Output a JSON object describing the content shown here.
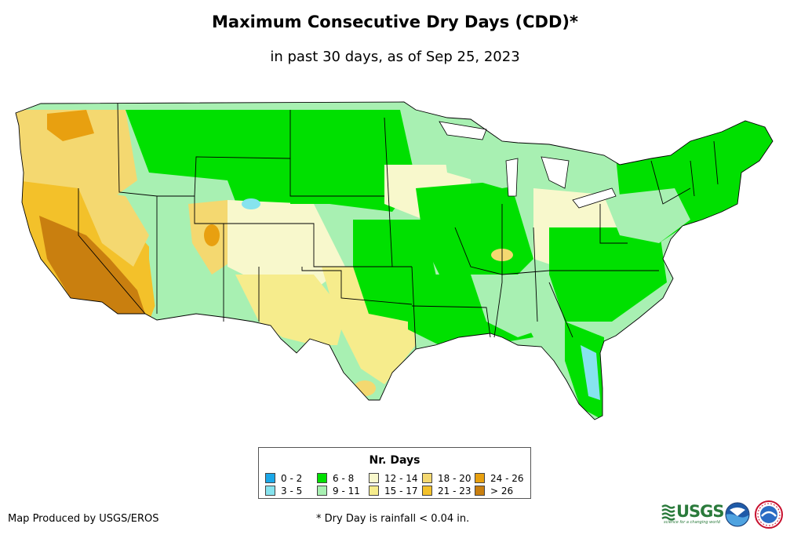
{
  "header": {
    "title": "Maximum Consecutive Dry Days (CDD)*",
    "subtitle": "in past 30 days, as of Sep 25, 2023"
  },
  "legend": {
    "title": "Nr. Days",
    "items": [
      {
        "label": "0 - 2",
        "color": "#1ba7e8"
      },
      {
        "label": "3 - 5",
        "color": "#86e3ee"
      },
      {
        "label": "6 - 8",
        "color": "#00e000"
      },
      {
        "label": "9 - 11",
        "color": "#a8f0b2"
      },
      {
        "label": "12 - 14",
        "color": "#f8f8cc"
      },
      {
        "label": "15 - 17",
        "color": "#f6ec8c"
      },
      {
        "label": "18 - 20",
        "color": "#f4d870"
      },
      {
        "label": "21 - 23",
        "color": "#f3c12a"
      },
      {
        "label": "24 - 26",
        "color": "#e8a010"
      },
      {
        "label": "> 26",
        "color": "#c97f0f"
      }
    ]
  },
  "footer": {
    "producer": "Map Produced by USGS/EROS",
    "footnote": "* Dry Day is rainfall < 0.04 in."
  },
  "logos": {
    "usgs": "USGS",
    "usgs_tagline": "science for a changing world"
  },
  "map": {
    "icon": "us-map-icon",
    "regions": [
      {
        "name": "pacific-northwest",
        "category": "18 - 20"
      },
      {
        "name": "california",
        "category": "> 26"
      },
      {
        "name": "great-basin",
        "category": "21 - 23"
      },
      {
        "name": "northern-plains",
        "category": "6 - 8"
      },
      {
        "name": "central-plains",
        "category": "12 - 14"
      },
      {
        "name": "texas",
        "category": "15 - 17"
      },
      {
        "name": "southeast",
        "category": "6 - 8"
      },
      {
        "name": "northeast",
        "category": "6 - 8"
      },
      {
        "name": "great-lakes",
        "category": "9 - 11"
      },
      {
        "name": "florida",
        "category": "6 - 8"
      }
    ]
  }
}
